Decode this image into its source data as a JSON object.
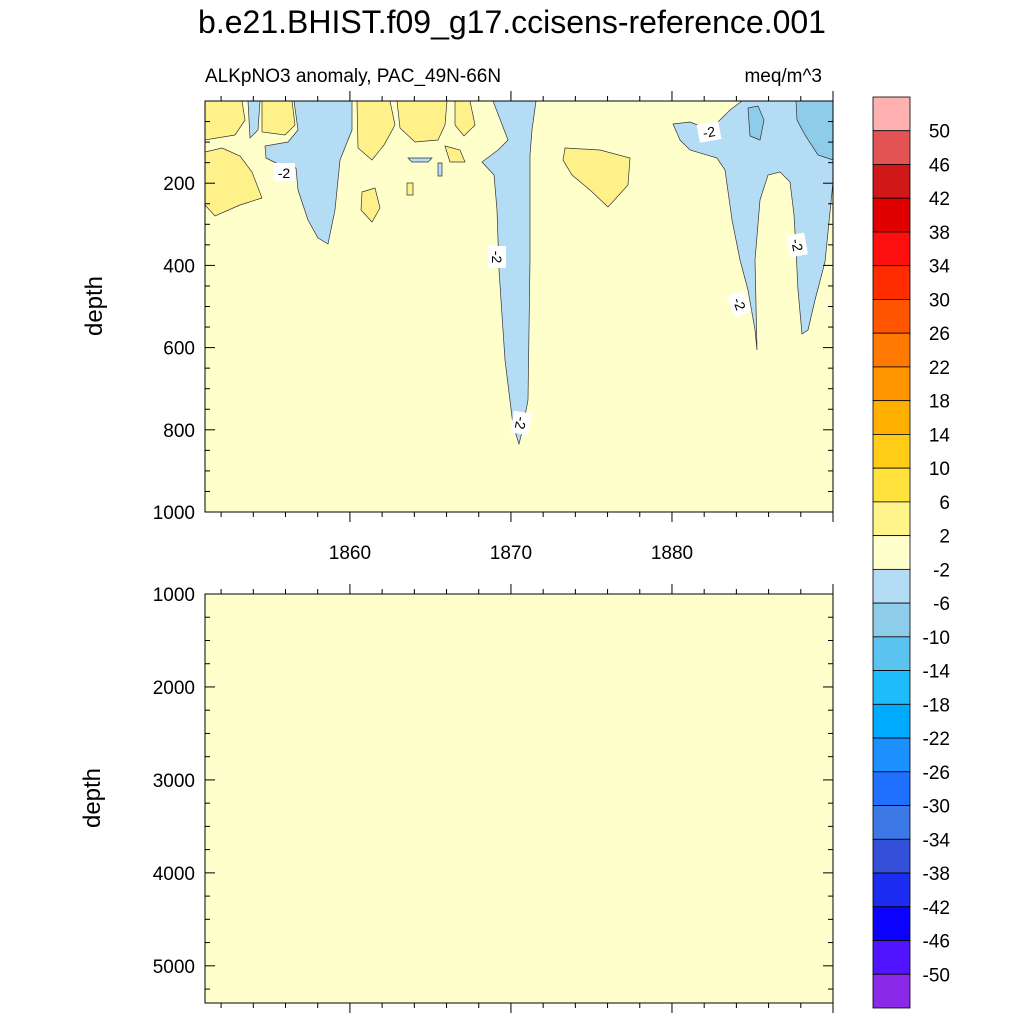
{
  "title": "b.e21.BHIST.f09_g17.ccisens-reference.001",
  "subtitle_left": "ALKpNO3 anomaly, PAC_49N-66N",
  "subtitle_right": "meq/m^3",
  "chart_data": [
    {
      "type": "heatmap",
      "panel": "upper",
      "ylabel": "depth",
      "yticks": [
        200,
        400,
        600,
        800,
        1000
      ],
      "ylim": [
        1000,
        0
      ],
      "xticks": [
        1860,
        1870,
        1880
      ],
      "xlim": [
        1851,
        1890
      ],
      "background_level": "-2 to 2",
      "contour_labels": [
        "-2",
        "-2",
        "-2",
        "-2",
        "-2",
        "-2"
      ]
    },
    {
      "type": "heatmap",
      "panel": "lower",
      "ylabel": "depth",
      "yticks": [
        1000,
        2000,
        3000,
        4000,
        5000
      ],
      "ylim": [
        5400,
        1000
      ],
      "xlim": [
        1851,
        1890
      ],
      "background_level": "-2 to 2"
    }
  ],
  "colorbar": {
    "labels": [
      "50",
      "46",
      "42",
      "38",
      "34",
      "30",
      "26",
      "22",
      "18",
      "14",
      "10",
      "6",
      "2",
      "-2",
      "-6",
      "-10",
      "-14",
      "-18",
      "-22",
      "-26",
      "-30",
      "-34",
      "-38",
      "-42",
      "-46",
      "-50"
    ],
    "colors": [
      "#ffb0b0",
      "#e45454",
      "#d01818",
      "#e00000",
      "#ff1010",
      "#ff2c00",
      "#ff5500",
      "#ff7800",
      "#ff9600",
      "#ffb000",
      "#ffcd18",
      "#ffe33c",
      "#fff48a",
      "#ffffcc",
      "#b4dcf4",
      "#8ecde9",
      "#5ac3f0",
      "#1ebcf8",
      "#00aaff",
      "#1c90ff",
      "#2070ff",
      "#3c78e6",
      "#3450d8",
      "#1c2cf0",
      "#0c00ff",
      "#5014ff",
      "#8c28e8"
    ]
  }
}
